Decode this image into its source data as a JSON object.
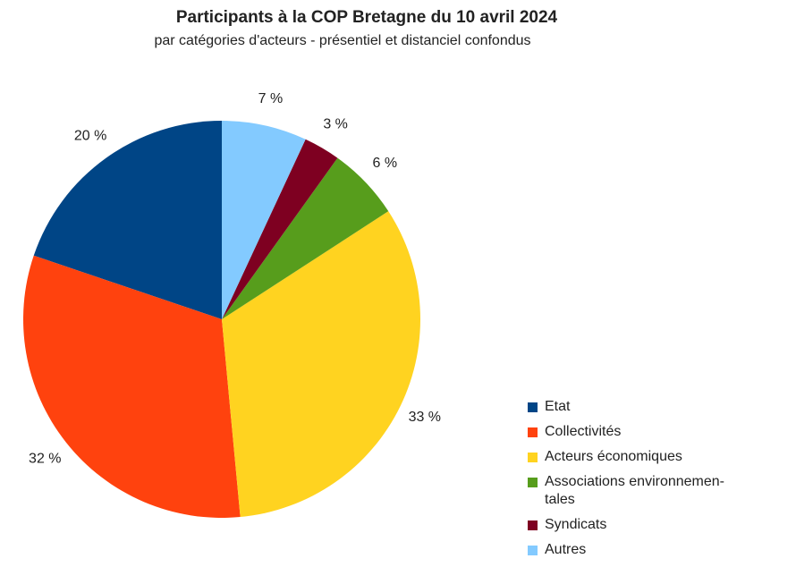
{
  "chart_data": {
    "type": "pie",
    "title": "Participants à la COP Bretagne du 10 avril 2024",
    "subtitle": "par catégories d'acteurs - présentiel et distanciel confondus",
    "categories": [
      "Etat",
      "Collectivités",
      "Acteurs économiques",
      "Associations environnemen-\ntales",
      "Syndicats",
      "Autres"
    ],
    "values": [
      20,
      32,
      33,
      6,
      3,
      7
    ],
    "value_labels": [
      "20 %",
      "32 %",
      "33 %",
      "6 %",
      "3 %",
      "7 %"
    ],
    "colors": [
      "#004586",
      "#ff420e",
      "#ffd320",
      "#579d1c",
      "#7e0021",
      "#83caff"
    ],
    "legend": "right-bottom"
  }
}
